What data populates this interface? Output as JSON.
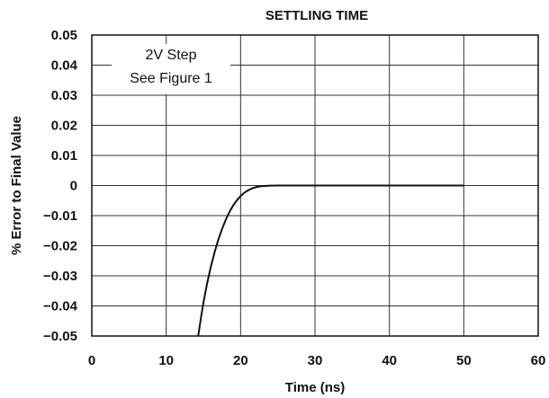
{
  "chart_data": {
    "type": "line",
    "title": "SETTLING TIME",
    "xlabel": "Time (ns)",
    "ylabel": "% Error to Final Value",
    "xlim": [
      0,
      60
    ],
    "ylim": [
      -0.05,
      0.05
    ],
    "x_ticks": [
      0,
      10,
      20,
      30,
      40,
      50,
      60
    ],
    "y_ticks": [
      0.05,
      0.04,
      0.03,
      0.02,
      0.01,
      0,
      -0.01,
      -0.02,
      -0.03,
      -0.04,
      -0.05
    ],
    "x_tick_labels": [
      "0",
      "10",
      "20",
      "30",
      "40",
      "50",
      "60"
    ],
    "y_tick_labels": [
      "0.05",
      "0.04",
      "0.03",
      "0.02",
      "0.01",
      "0",
      "−0.01",
      "−0.02",
      "−0.03",
      "−0.04",
      "−0.05"
    ],
    "grid": true,
    "annotations": [
      "2V Step",
      "See Figure 1"
    ],
    "series": [
      {
        "x": [
          14.3,
          14.7,
          15.0,
          15.5,
          16.0,
          16.5,
          17.0,
          17.5,
          18.0,
          18.5,
          19.0,
          19.5,
          20.0,
          20.5,
          21.0,
          21.5,
          22.0,
          22.5,
          23.0,
          24.0,
          25.0,
          30.0,
          40.0,
          50.0
        ],
        "y": [
          -0.05,
          -0.0435,
          -0.039,
          -0.0325,
          -0.027,
          -0.0222,
          -0.018,
          -0.0145,
          -0.0114,
          -0.0088,
          -0.0066,
          -0.0049,
          -0.0035,
          -0.0024,
          -0.0016,
          -0.001,
          -0.0006,
          -0.0003,
          -0.0002,
          -5e-05,
          0,
          0,
          0,
          0
        ]
      }
    ]
  }
}
